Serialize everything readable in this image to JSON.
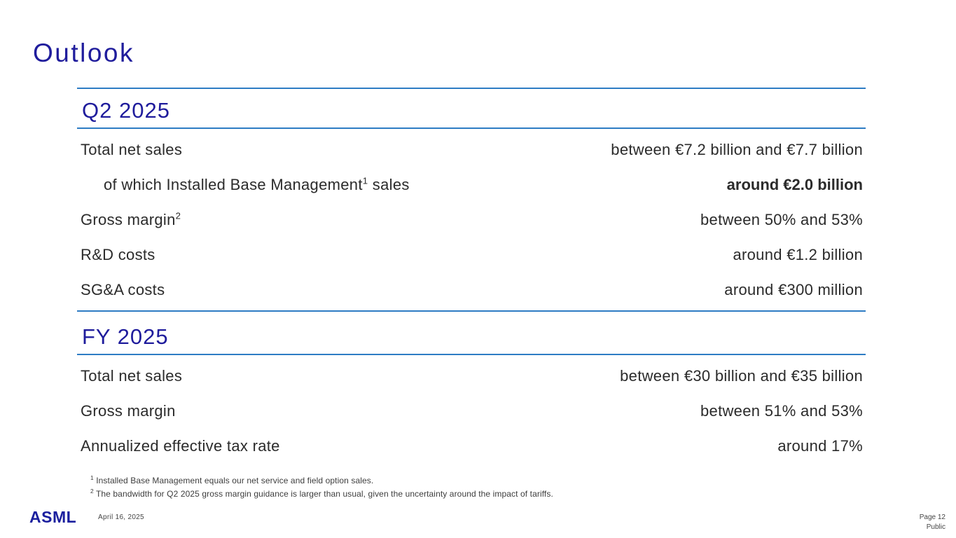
{
  "slide": {
    "title": "Outlook",
    "sections": [
      {
        "heading": "Q2 2025",
        "rows": [
          {
            "label": "Total net sales",
            "sup": "",
            "suffix": "",
            "value": "between €7.2 billion and €7.7 billion"
          },
          {
            "label": "of which Installed Base Management",
            "sup": "1",
            "suffix": " sales",
            "value": "around €2.0 billion"
          },
          {
            "label": "Gross margin",
            "sup": "2",
            "suffix": "",
            "value": "between 50% and 53%"
          },
          {
            "label": "R&D costs",
            "sup": "",
            "suffix": "",
            "value": "around €1.2 billion"
          },
          {
            "label": "SG&A costs",
            "sup": "",
            "suffix": "",
            "value": "around €300 million"
          }
        ]
      },
      {
        "heading": "FY 2025",
        "rows": [
          {
            "label": "Total net sales",
            "sup": "",
            "suffix": "",
            "value": "between €30 billion and €35 billion"
          },
          {
            "label": "Gross margin",
            "sup": "",
            "suffix": "",
            "value": "between 51% and 53%"
          },
          {
            "label": "Annualized effective tax rate",
            "sup": "",
            "suffix": "",
            "value": "around 17%"
          }
        ]
      }
    ],
    "footnotes": [
      {
        "sup": "1",
        "text": " Installed Base Management equals our net service and field option sales."
      },
      {
        "sup": "2",
        "text": " The bandwidth for Q2 2025 gross margin guidance is larger than usual, given the uncertainty around the impact of tariffs."
      }
    ],
    "footer": {
      "logo_text": "ASML",
      "date": "April 16, 2025",
      "page_label": "Page 12",
      "classification": "Public"
    },
    "colors": {
      "navy": "#1f1c9c",
      "rule_blue": "#2e7cc4",
      "body_text": "#2b2b2b",
      "muted_gray": "#454545"
    }
  }
}
